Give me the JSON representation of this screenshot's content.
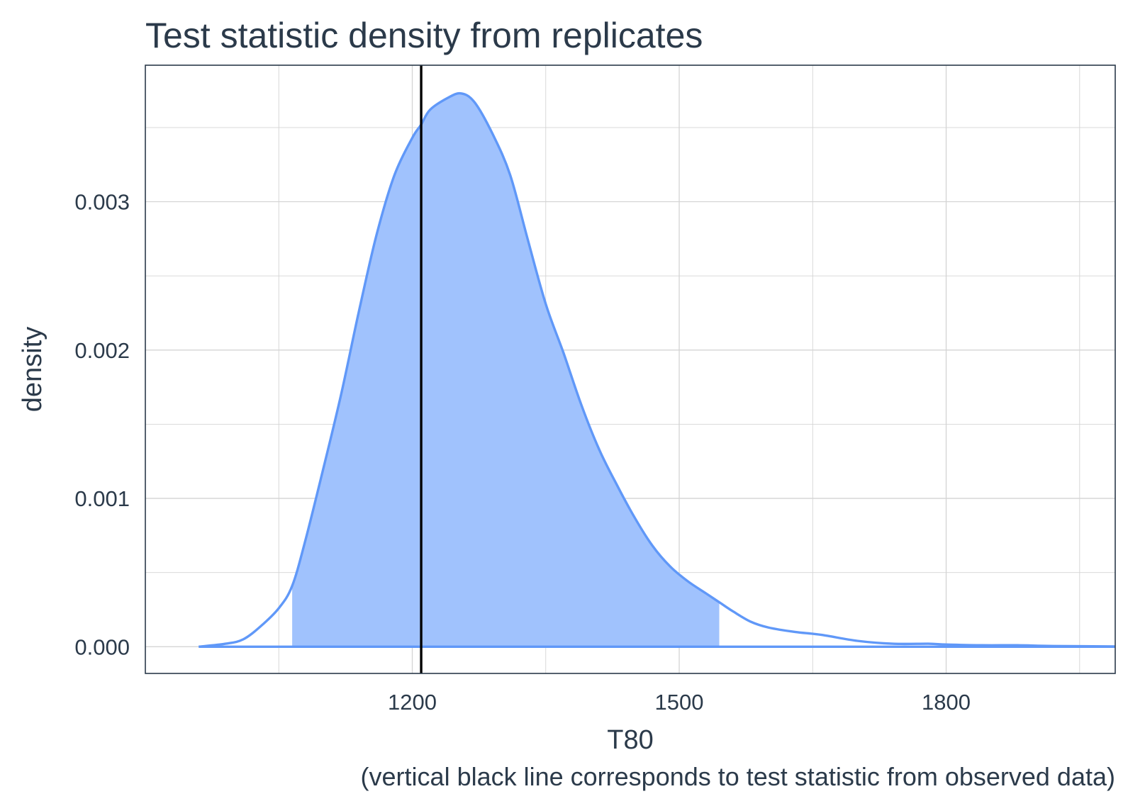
{
  "chart_data": {
    "type": "area",
    "title": "Test statistic density from replicates",
    "xlabel": "T80",
    "ylabel": "density",
    "caption": "(vertical black line corresponds to test statistic from observed data)",
    "xlim": [
      900,
      1990
    ],
    "ylim": [
      -0.00018,
      0.00392
    ],
    "x_ticks": [
      1200,
      1500,
      1800
    ],
    "x_tick_labels": [
      "1200",
      "1500",
      "1800"
    ],
    "y_ticks": [
      0,
      0.001,
      0.002,
      0.003
    ],
    "y_tick_labels": [
      "0.000",
      "0.001",
      "0.002",
      "0.003"
    ],
    "grid": true,
    "legend": "none",
    "observed_statistic": 1210,
    "shaded_interval": [
      1065,
      1545
    ],
    "series": [
      {
        "x": [
          960,
          990,
          1010,
          1030,
          1050,
          1065,
          1080,
          1100,
          1120,
          1140,
          1160,
          1180,
          1200,
          1210,
          1220,
          1240,
          1255,
          1270,
          1290,
          1310,
          1330,
          1350,
          1370,
          1390,
          1410,
          1430,
          1450,
          1470,
          1490,
          1510,
          1530,
          1545,
          1560,
          1580,
          1600,
          1630,
          1660,
          1700,
          1740,
          1780,
          1800,
          1840,
          1880,
          1920,
          1990
        ],
        "y": [
          0.0,
          2e-05,
          5e-05,
          0.00014,
          0.00026,
          0.00041,
          0.00072,
          0.0012,
          0.0017,
          0.00226,
          0.00278,
          0.00318,
          0.00343,
          0.00352,
          0.00362,
          0.0037,
          0.00373,
          0.00367,
          0.00346,
          0.00318,
          0.00274,
          0.00231,
          0.00198,
          0.00163,
          0.00133,
          0.00109,
          0.00087,
          0.00068,
          0.00054,
          0.00044,
          0.00036,
          0.0003,
          0.00024,
          0.00017,
          0.00013,
          0.0001,
          8e-05,
          4e-05,
          2e-05,
          2e-05,
          1.5e-05,
          1e-05,
          1e-05,
          5e-06,
          2e-06
        ]
      }
    ],
    "colors": {
      "fill": "#a0c2fd",
      "curve": "#6098f8",
      "observed_line": "#000000",
      "panel_border": "#2b3a4a"
    }
  }
}
